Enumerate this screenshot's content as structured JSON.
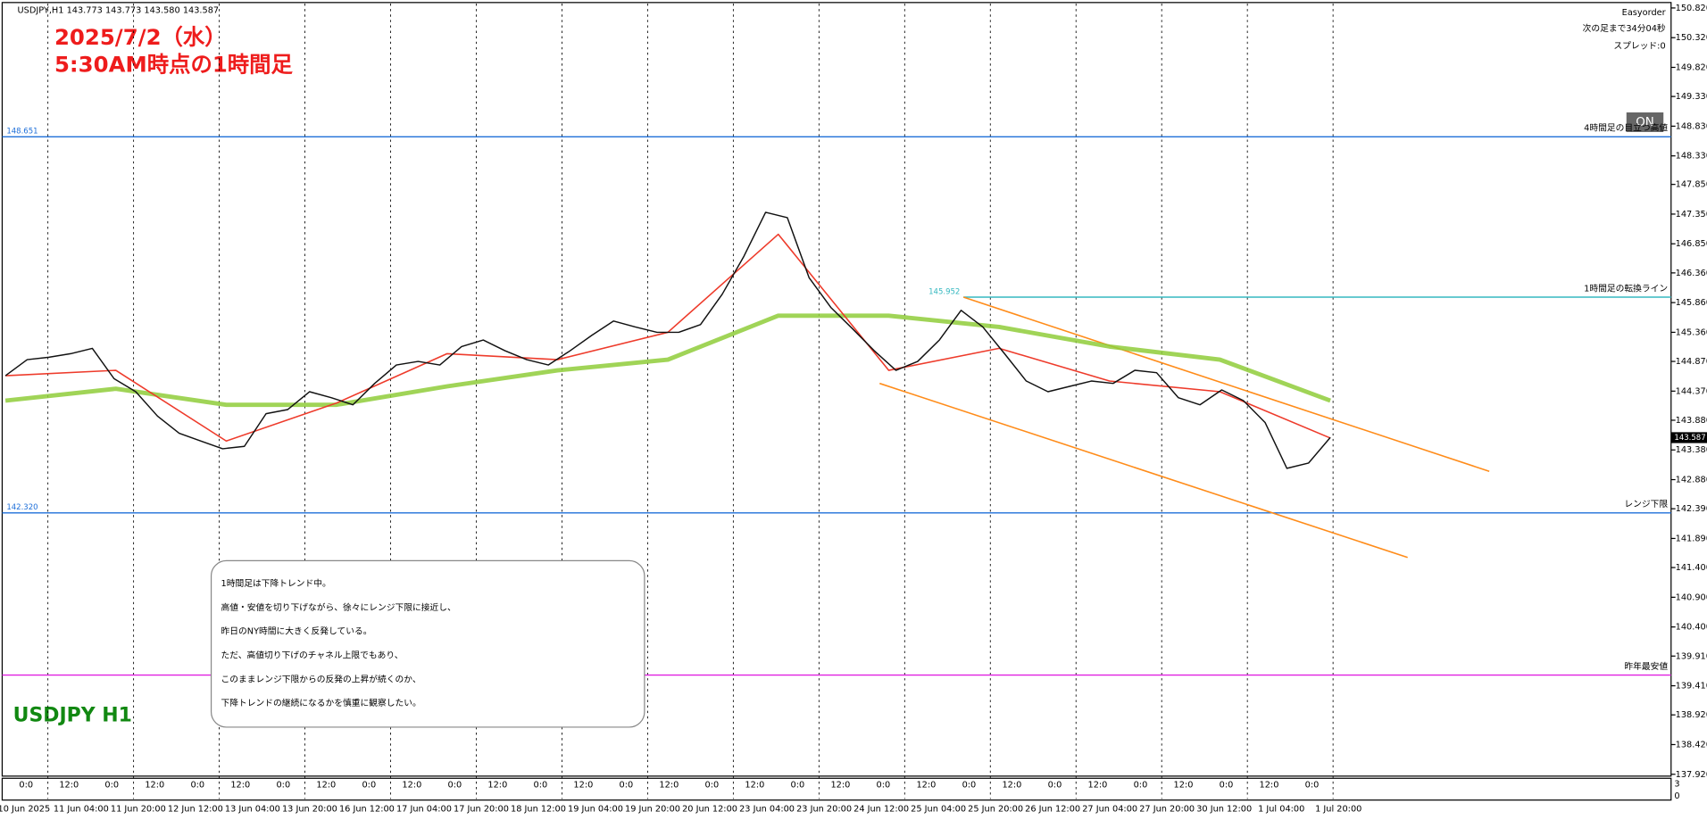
{
  "chart_data": {
    "type": "line",
    "header": "USDJPY,H1  143.773 143.773 143.580 143.587",
    "title": "2025/7/2（水）",
    "subtitle": "5:30AM時点の1時間足",
    "symbol_label": "USDJPY H1",
    "panel": {
      "name": "Easyorder",
      "countdown": "次の足まで34分04秒",
      "spread": "スプレッド:0",
      "button": "ON"
    },
    "ylim": [
      137.889,
      150.948
    ],
    "yticks": [
      {
        "value": 150.82,
        "label": "150.820"
      },
      {
        "value": 150.32,
        "label": "150.320"
      },
      {
        "value": 149.82,
        "label": "149.820"
      },
      {
        "value": 149.33,
        "label": "149.330"
      },
      {
        "value": 148.83,
        "label": "148.830"
      },
      {
        "value": 148.33,
        "label": "148.330"
      },
      {
        "value": 147.85,
        "label": "147.850"
      },
      {
        "value": 147.35,
        "label": "147.350"
      },
      {
        "value": 146.85,
        "label": "146.850"
      },
      {
        "value": 146.36,
        "label": "146.360"
      },
      {
        "value": 145.86,
        "label": "145.860"
      },
      {
        "value": 145.36,
        "label": "145.360"
      },
      {
        "value": 144.87,
        "label": "144.870"
      },
      {
        "value": 144.37,
        "label": "144.370"
      },
      {
        "value": 143.88,
        "label": "143.880"
      },
      {
        "value": 143.38,
        "label": "143.380"
      },
      {
        "value": 142.88,
        "label": "142.880"
      },
      {
        "value": 142.39,
        "label": "142.390"
      },
      {
        "value": 141.89,
        "label": "141.890"
      },
      {
        "value": 141.4,
        "label": "141.400"
      },
      {
        "value": 140.9,
        "label": "140.900"
      },
      {
        "value": 140.4,
        "label": "140.400"
      },
      {
        "value": 139.91,
        "label": "139.910"
      },
      {
        "value": 139.41,
        "label": "139.410"
      },
      {
        "value": 138.92,
        "label": "138.920"
      },
      {
        "value": 138.42,
        "label": "138.420"
      },
      {
        "value": 137.92,
        "label": "137.920"
      }
    ],
    "current_price": {
      "value": 143.587,
      "label": "143.587"
    },
    "levels": [
      {
        "value": 148.651,
        "label": "148.651",
        "name": "4時間足の目立つ高値",
        "color": "#1e6fd9"
      },
      {
        "value": 145.952,
        "label": "145.952",
        "name": "1時間足の転換ライン",
        "color": "#36b8c0"
      },
      {
        "value": 142.32,
        "label": "142.320",
        "name": "レンジ下限",
        "color": "#1e6fd9"
      },
      {
        "value": 139.59,
        "name": "昨年最安値",
        "color": "#e020e0"
      }
    ],
    "channel": {
      "color": "#ff8c1a",
      "upper": [
        145.952,
        143.02
      ],
      "lower": [
        144.5,
        141.57
      ]
    },
    "series": [
      {
        "name": "Price",
        "color": "#111111",
        "values": [
          144.63,
          144.9,
          144.94,
          145.0,
          145.09,
          144.58,
          144.36,
          143.95,
          143.66,
          143.53,
          143.4,
          143.44,
          143.99,
          144.06,
          144.36,
          144.26,
          144.14,
          144.5,
          144.81,
          144.87,
          144.81,
          145.12,
          145.23,
          145.05,
          144.9,
          144.81,
          145.05,
          145.31,
          145.55,
          145.45,
          145.36,
          145.36,
          145.49,
          146.0,
          146.64,
          147.38,
          147.29,
          146.28,
          145.78,
          145.42,
          145.05,
          144.72,
          144.87,
          145.23,
          145.73,
          145.45,
          145.0,
          144.54,
          144.36,
          144.45,
          144.54,
          144.5,
          144.72,
          144.68,
          144.26,
          144.14,
          144.39,
          144.21,
          143.84,
          143.07,
          143.16,
          143.59
        ]
      },
      {
        "name": "MA long",
        "color": "#8fcc3a",
        "values": [
          144.21,
          144.41,
          144.14,
          144.14,
          144.45,
          144.72,
          144.9,
          145.64,
          145.64,
          145.45,
          145.12,
          144.9,
          144.21
        ]
      },
      {
        "name": "MA short",
        "color": "#ee3b2b",
        "values": [
          144.63,
          144.72,
          143.53,
          144.17,
          145.0,
          144.9,
          145.36,
          147.01,
          144.72,
          145.09,
          144.54,
          144.36,
          143.58
        ]
      }
    ],
    "x_labels": [
      "10 Jun 2025",
      "11 Jun 04:00",
      "11 Jun 20:00",
      "12 Jun 12:00",
      "13 Jun 04:00",
      "13 Jun 20:00",
      "16 Jun 12:00",
      "17 Jun 04:00",
      "17 Jun 20:00",
      "18 Jun 12:00",
      "19 Jun 04:00",
      "19 Jun 20:00",
      "20 Jun 12:00",
      "23 Jun 04:00",
      "23 Jun 20:00",
      "24 Jun 12:00",
      "25 Jun 04:00",
      "25 Jun 20:00",
      "26 Jun 12:00",
      "27 Jun 04:00",
      "27 Jun 20:00",
      "30 Jun 12:00",
      "1 Jul 04:00",
      "1 Jul 20:00"
    ],
    "hour_labels": [
      "0:0",
      "12:0",
      "0:0",
      "12:0",
      "0:0",
      "12:0",
      "0:0",
      "12:0",
      "0:0",
      "12:0",
      "0:0",
      "12:0",
      "0:0",
      "12:0",
      "0:0",
      "12:0",
      "0:0",
      "12:0",
      "0:0",
      "12:0",
      "0:0",
      "12:0",
      "0:0",
      "12:0",
      "0:0",
      "12:0",
      "0:0",
      "12:0",
      "0:0",
      "12:0",
      "0:0"
    ],
    "strip_ticks": [
      3,
      0
    ],
    "note": [
      "1時間足は下降トレンド中。",
      "高値・安値を切り下げながら、徐々にレンジ下限に接近し、",
      "昨日のNY時間に大きく反発している。",
      "ただ、高値切り下げのチャネル上限でもあり、",
      "このままレンジ下限からの反発の上昇が続くのか、",
      "下降トレンドの継続になるかを慎重に観察したい。"
    ]
  }
}
